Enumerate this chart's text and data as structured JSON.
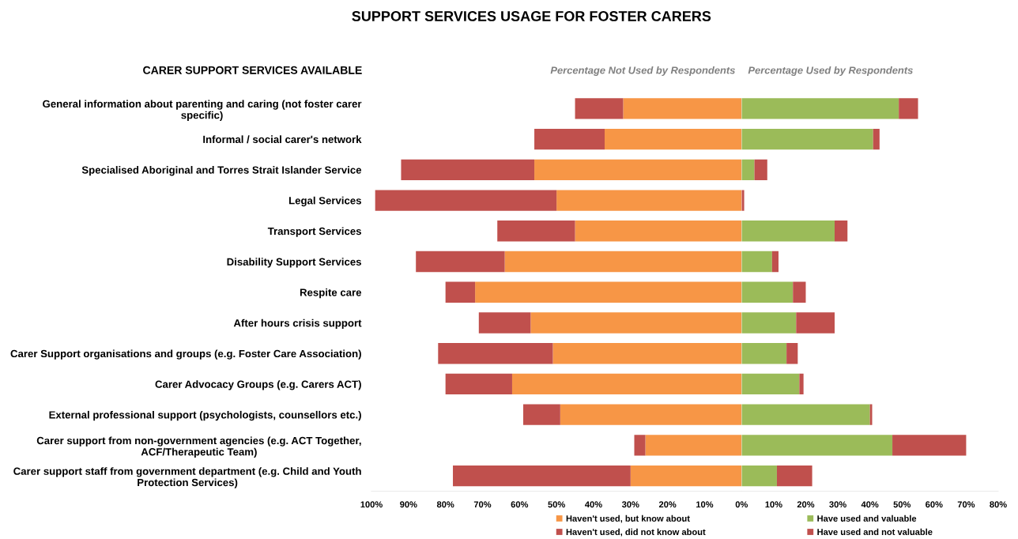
{
  "chart_data": [
    {
      "type": "bar",
      "orientation": "horizontal",
      "stacked": true,
      "title": "SUPPORT SERVICES USAGE FOR FOSTER CARERS",
      "subtitle": "Percentage Not Used by Respondents",
      "ylabel": "CARER SUPPORT SERVICES AVAILABLE",
      "categories": [
        "General information about parenting and caring (not foster carer\nspecific)",
        "Informal / social carer's network",
        "Specialised Aboriginal and Torres Strait Islander Service",
        "Legal Services",
        "Transport Services",
        "Disability Support Services",
        "Respite care",
        "After hours crisis support",
        "Carer Support organisations and groups (e.g. Foster Care Association)",
        "Carer Advocacy Groups (e.g. Carers ACT)",
        "External professional support (psychologists, counsellors etc.)",
        "Carer support from non-government agencies (e.g. ACT Together,\nACF/Therapeutic Team)",
        "Carer support staff from government department (e.g. Child and Youth\nProtection Services)"
      ],
      "series": [
        {
          "name": "Haven't used, but know about",
          "color": "#f79646",
          "values": [
            32,
            37,
            56,
            50,
            45,
            64,
            72,
            57,
            51,
            62,
            49,
            26,
            30
          ]
        },
        {
          "name": "Haven't used, did not know about",
          "color": "#c0504d",
          "values": [
            13,
            19,
            36,
            49,
            21,
            24,
            8,
            14,
            31,
            18,
            10,
            3,
            48
          ]
        }
      ],
      "xlim": [
        100,
        0
      ],
      "xticks": [
        {
          "value": 100,
          "label": "100%"
        },
        {
          "value": 90,
          "label": "90%"
        },
        {
          "value": 80,
          "label": "80%"
        },
        {
          "value": 70,
          "label": "70%"
        },
        {
          "value": 60,
          "label": "60%"
        },
        {
          "value": 50,
          "label": "50%"
        },
        {
          "value": 40,
          "label": "40%"
        },
        {
          "value": 30,
          "label": "30%"
        },
        {
          "value": 20,
          "label": "20%"
        },
        {
          "value": 10,
          "label": "10%"
        },
        {
          "value": 0,
          "label": "0%"
        }
      ],
      "legend": "bottom right"
    },
    {
      "type": "bar",
      "orientation": "horizontal",
      "stacked": true,
      "subtitle": "Percentage Used by Respondents",
      "categories": [
        "General information about parenting and caring (not foster carer\nspecific)",
        "Informal / social carer's network",
        "Specialised Aboriginal and Torres Strait Islander Service",
        "Legal Services",
        "Transport Services",
        "Disability Support Services",
        "Respite care",
        "After hours crisis support",
        "Carer Support organisations and groups (e.g. Foster Care Association)",
        "Carer Advocacy Groups (e.g. Carers ACT)",
        "External professional support (psychologists, counsellors etc.)",
        "Carer support from non-government agencies (e.g. ACT Together,\nACF/Therapeutic Team)",
        "Carer support staff from government department (e.g. Child and Youth\nProtection Services)"
      ],
      "series": [
        {
          "name": "Have used and valuable",
          "color": "#9bbb59",
          "values": [
            49,
            41,
            4,
            0,
            29,
            9.5,
            16,
            17,
            14,
            18,
            40,
            47,
            11
          ]
        },
        {
          "name": "Have used and not valuable",
          "color": "#c0504d",
          "values": [
            6,
            2,
            4,
            0.8,
            4,
            2,
            4,
            12,
            3.5,
            1.3,
            0.7,
            23,
            11
          ]
        }
      ],
      "xlim": [
        0,
        80
      ],
      "xticks": [
        {
          "value": 10,
          "label": "10%"
        },
        {
          "value": 20,
          "label": "20%"
        },
        {
          "value": 30,
          "label": "30%"
        },
        {
          "value": 40,
          "label": "40%"
        },
        {
          "value": 50,
          "label": "50%"
        },
        {
          "value": 60,
          "label": "60%"
        },
        {
          "value": 70,
          "label": "70%"
        },
        {
          "value": 80,
          "label": "80%"
        }
      ],
      "tick_labels": "x",
      "legend": "bottom"
    }
  ]
}
